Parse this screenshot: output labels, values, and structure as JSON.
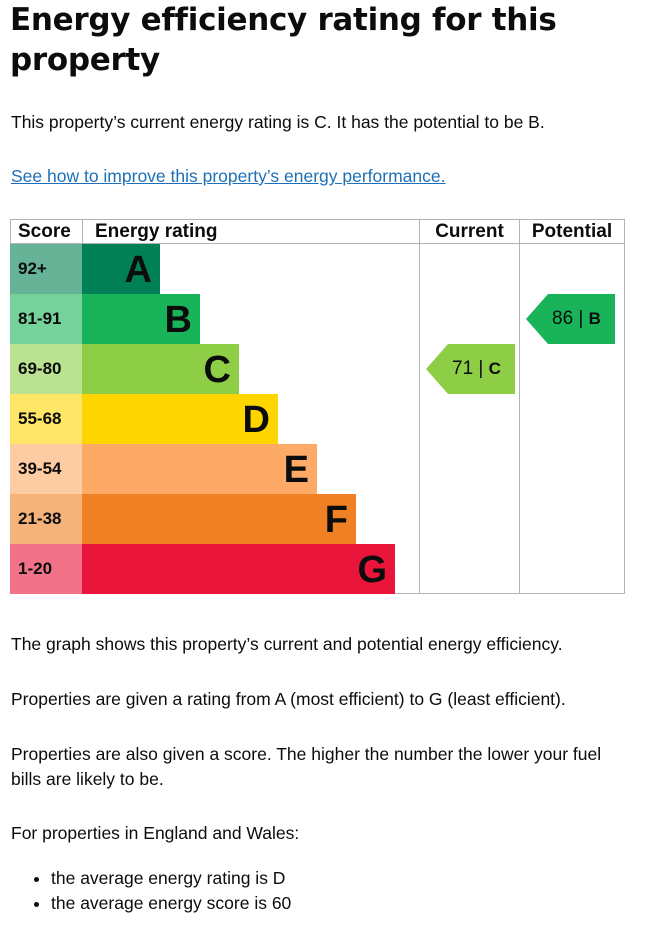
{
  "heading": "Energy efficiency rating for this property",
  "intro": "This property’s current energy rating is C. It has the potential to be B.",
  "improve_link": "See how to improve this property’s energy performance.",
  "chart_data": {
    "type": "table",
    "headers": {
      "score": "Score",
      "rating": "Energy rating",
      "current": "Current",
      "potential": "Potential"
    },
    "bands": [
      {
        "score": "92+",
        "letter": "A",
        "color": "#008054",
        "score_bg": "#66b398",
        "bar_frac": 0.232
      },
      {
        "score": "81-91",
        "letter": "B",
        "color": "#19b459",
        "score_bg": "#75d29b",
        "bar_frac": 0.349
      },
      {
        "score": "69-80",
        "letter": "C",
        "color": "#8dce46",
        "score_bg": "#bbe290",
        "bar_frac": 0.465
      },
      {
        "score": "55-68",
        "letter": "D",
        "color": "#ffd500",
        "score_bg": "#ffe666",
        "bar_frac": 0.581
      },
      {
        "score": "39-54",
        "letter": "E",
        "color": "#fcaa65",
        "score_bg": "#fdcca3",
        "bar_frac": 0.698
      },
      {
        "score": "21-38",
        "letter": "F",
        "color": "#ef8023",
        "score_bg": "#f5b37b",
        "bar_frac": 0.814
      },
      {
        "score": "1-20",
        "letter": "G",
        "color": "#e9153b",
        "score_bg": "#f27389",
        "bar_frac": 0.93
      }
    ],
    "current": {
      "value": 71,
      "letter": "C",
      "color": "#8dce46",
      "band_index": 2
    },
    "potential": {
      "value": 86,
      "letter": "B",
      "color": "#19b459",
      "band_index": 1
    }
  },
  "explanation_1": "The graph shows this property’s current and potential energy efficiency.",
  "explanation_2": "Properties are given a rating from A (most efficient) to G (least efficient).",
  "explanation_3": "Properties are also given a score. The higher the number the lower your fuel bills are likely to be.",
  "regional_intro": "For properties in England and Wales:",
  "bullets": [
    "the average energy rating is D",
    "the average energy score is 60"
  ]
}
